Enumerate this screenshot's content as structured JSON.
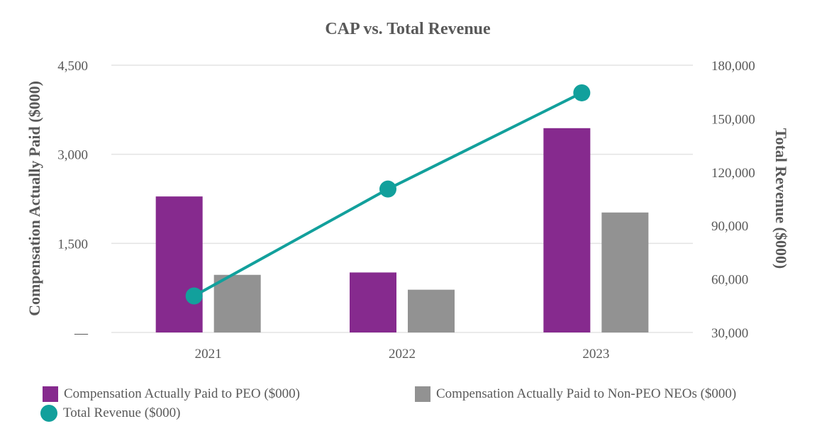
{
  "chart_data": {
    "type": "bar+line",
    "title": "CAP vs. Total Revenue",
    "categories": [
      "2021",
      "2022",
      "2023"
    ],
    "y_left": {
      "label": "Compensation Actually Paid ($000)",
      "min": 0,
      "max": 4500,
      "ticks": [
        {
          "value": 0,
          "label": "—"
        },
        {
          "value": 1500,
          "label": "1,500"
        },
        {
          "value": 3000,
          "label": "3,000"
        },
        {
          "value": 4500,
          "label": "4,500"
        }
      ]
    },
    "y_right": {
      "label": "Total Revenue ($000)",
      "min": 30000,
      "max": 180000,
      "ticks": [
        {
          "value": 30000,
          "label": "30,000"
        },
        {
          "value": 60000,
          "label": "60,000"
        },
        {
          "value": 90000,
          "label": "90,000"
        },
        {
          "value": 120000,
          "label": "120,000"
        },
        {
          "value": 150000,
          "label": "150,000"
        },
        {
          "value": 180000,
          "label": "180,000"
        }
      ]
    },
    "series": [
      {
        "name": "Compensation Actually Paid to PEO ($000)",
        "type": "bar",
        "axis": "left",
        "color": "#862a8e",
        "values": [
          2290,
          1010,
          3440
        ]
      },
      {
        "name": "Compensation Actually Paid to Non-PEO NEOs ($000)",
        "type": "bar",
        "axis": "left",
        "color": "#929292",
        "values": [
          970,
          720,
          2020
        ]
      },
      {
        "name": "Total Revenue ($000)",
        "type": "line",
        "axis": "right",
        "color": "#12a09c",
        "values": [
          50500,
          110500,
          164500
        ]
      }
    ],
    "grid": true,
    "legend_position": "bottom"
  }
}
